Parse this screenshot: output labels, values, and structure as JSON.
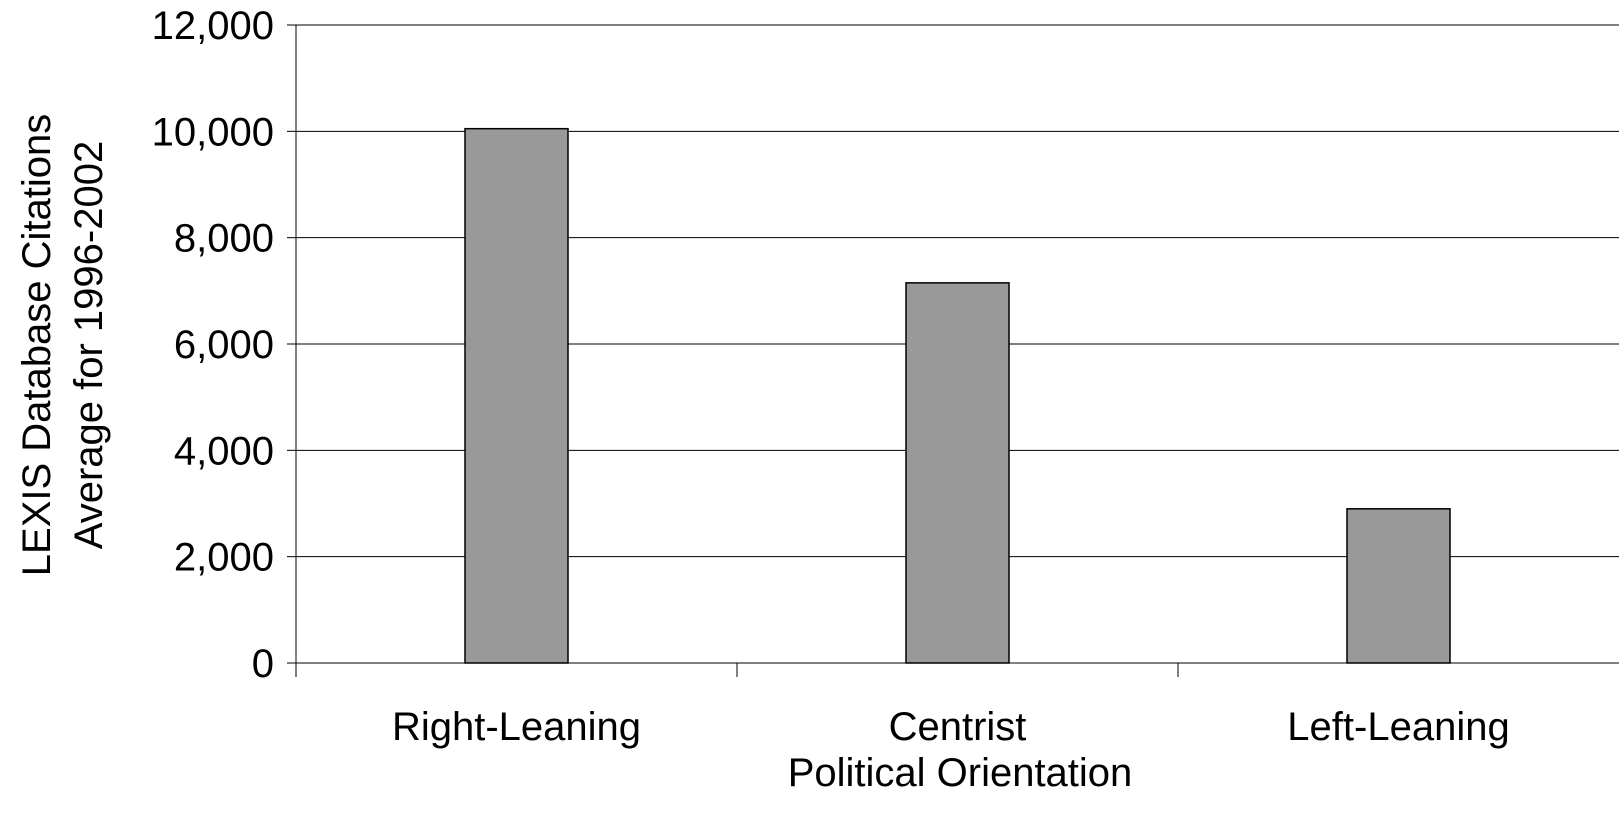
{
  "chart_data": {
    "type": "bar",
    "categories": [
      "Right-Leaning",
      "Centrist",
      "Left-Leaning"
    ],
    "values": [
      10050,
      7150,
      2900
    ],
    "xlabel": "Political Orientation",
    "ylabel_lines": [
      "LEXIS Database Citations",
      "Average for 1996-2002"
    ],
    "ylim": [
      0,
      12000
    ],
    "yticks": [
      0,
      2000,
      4000,
      6000,
      8000,
      10000,
      12000
    ],
    "ytick_labels": [
      "0",
      "2,000",
      "4,000",
      "6,000",
      "8,000",
      "10,000",
      "12,000"
    ],
    "grid": true,
    "legend": "none",
    "colors": {
      "bar_fill": "#999999",
      "bar_stroke": "#000000",
      "gridline": "#000000",
      "axis": "#000000"
    }
  }
}
